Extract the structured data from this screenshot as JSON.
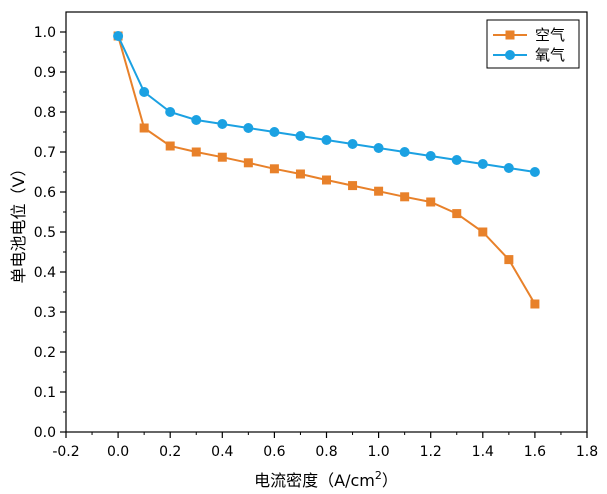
{
  "chart_data": {
    "type": "line",
    "xlabel": "电流密度（A/cm",
    "xlabel_sup": "2",
    "xlabel_end": "）",
    "ylabel": "单电池电位（V）",
    "xlim": [
      -0.2,
      1.8
    ],
    "ylim": [
      0.0,
      1.05
    ],
    "xticks": [
      -0.2,
      0.0,
      0.2,
      0.4,
      0.6,
      0.8,
      1.0,
      1.2,
      1.4,
      1.6,
      1.8
    ],
    "yticks": [
      0.0,
      0.1,
      0.2,
      0.3,
      0.4,
      0.5,
      0.6,
      0.7,
      0.8,
      0.9,
      1.0
    ],
    "xtick_labels": [
      "-0.2",
      "0.0",
      "0.2",
      "0.4",
      "0.6",
      "0.8",
      "1.0",
      "1.2",
      "1.4",
      "1.6",
      "1.8"
    ],
    "ytick_labels": [
      "0.0",
      "0.1",
      "0.2",
      "0.3",
      "0.4",
      "0.5",
      "0.6",
      "0.7",
      "0.8",
      "0.9",
      "1.0"
    ],
    "grid": false,
    "legend_position": "top-right",
    "series": [
      {
        "name": "空气",
        "color": "#e8812a",
        "marker": "square",
        "x": [
          0.0,
          0.1,
          0.2,
          0.3,
          0.4,
          0.5,
          0.6,
          0.7,
          0.8,
          0.9,
          1.0,
          1.1,
          1.2,
          1.3,
          1.4,
          1.5,
          1.6
        ],
        "y": [
          0.99,
          0.76,
          0.715,
          0.7,
          0.687,
          0.673,
          0.658,
          0.645,
          0.63,
          0.616,
          0.602,
          0.588,
          0.575,
          0.546,
          0.5,
          0.431,
          0.32
        ]
      },
      {
        "name": "氧气",
        "color": "#1ba1e2",
        "marker": "circle",
        "x": [
          0.0,
          0.1,
          0.2,
          0.3,
          0.4,
          0.5,
          0.6,
          0.7,
          0.8,
          0.9,
          1.0,
          1.1,
          1.2,
          1.3,
          1.4,
          1.5,
          1.6
        ],
        "y": [
          0.99,
          0.85,
          0.8,
          0.78,
          0.77,
          0.76,
          0.75,
          0.74,
          0.73,
          0.72,
          0.71,
          0.7,
          0.69,
          0.68,
          0.67,
          0.66,
          0.65
        ]
      }
    ]
  }
}
